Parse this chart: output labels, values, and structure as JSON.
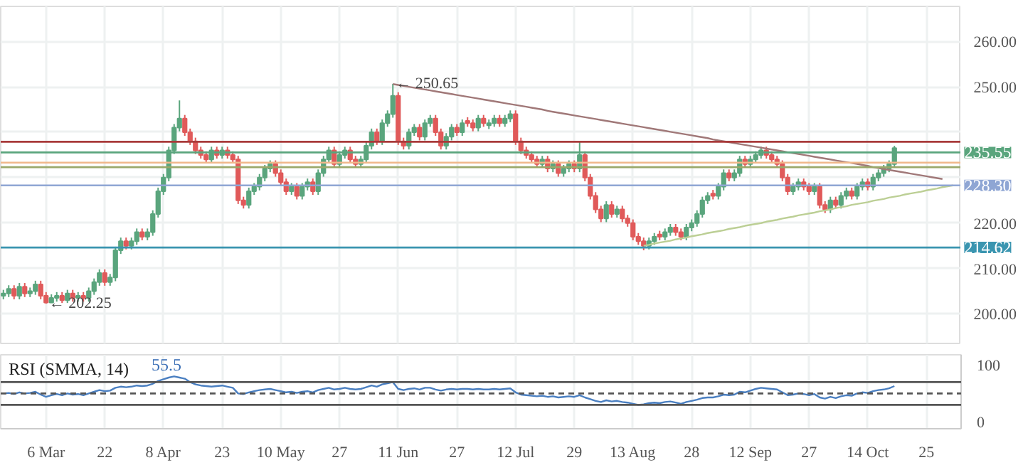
{
  "chart_data": [
    {
      "type": "candlestick",
      "categories": [
        null,
        null,
        null,
        null,
        null,
        null,
        null,
        null,
        null,
        null,
        null,
        null,
        null,
        null,
        null,
        null,
        null,
        null,
        null,
        null,
        null,
        null,
        null,
        null,
        null,
        null,
        null,
        null,
        null,
        null,
        null,
        null,
        null,
        null,
        null,
        null,
        null,
        null,
        null,
        null,
        null,
        null,
        null,
        null,
        null,
        null,
        null,
        null,
        null,
        null,
        null,
        null,
        null,
        null,
        null,
        null,
        null,
        null,
        null,
        null,
        null,
        null,
        null,
        null,
        null,
        null,
        null,
        null,
        null,
        null,
        null,
        null,
        null,
        null,
        null,
        null,
        null,
        null,
        null,
        null,
        null,
        null,
        null,
        null,
        null,
        null,
        null,
        null,
        null,
        null,
        null,
        null,
        null,
        null,
        null,
        null,
        null,
        null,
        null,
        null,
        null,
        null,
        null,
        null,
        null,
        null,
        null,
        null,
        null,
        null,
        null,
        null,
        null,
        null,
        null,
        null,
        null,
        null,
        null,
        null,
        null,
        null,
        null,
        null,
        null,
        null,
        null,
        null,
        null,
        null,
        null,
        null,
        null,
        null,
        null,
        null,
        null,
        null,
        null,
        null,
        null,
        null,
        null,
        null,
        null,
        null,
        null,
        null,
        null,
        null,
        null,
        null,
        null,
        null,
        null,
        null,
        null,
        null,
        null,
        null,
        null,
        null,
        null,
        null,
        null,
        null,
        null,
        null,
        null,
        null,
        null,
        null,
        null,
        null,
        null,
        null,
        null,
        null,
        null,
        null
      ],
      "ohlc": [
        [
          204,
          205.3,
          203.2,
          204.5
        ],
        [
          204.5,
          206.3,
          203.7,
          205.5
        ],
        [
          205.5,
          206.3,
          203.2,
          204
        ],
        [
          204,
          206.8,
          203.2,
          206
        ],
        [
          206,
          206.8,
          203.7,
          204.5
        ],
        [
          204.5,
          205.8,
          203.7,
          205
        ],
        [
          205,
          207.3,
          204.2,
          206.5
        ],
        [
          206.5,
          207.3,
          203.2,
          204
        ],
        [
          204,
          204.8,
          202.25,
          202.5
        ],
        [
          202.5,
          204.3,
          202.4,
          203.5
        ],
        [
          203.5,
          204.8,
          202.7,
          204
        ],
        [
          204,
          204.8,
          202.4,
          203
        ],
        [
          203,
          205.3,
          202.4,
          204.5
        ],
        [
          204.5,
          205.3,
          202.7,
          203.5
        ],
        [
          203.5,
          204.8,
          202.7,
          204
        ],
        [
          204,
          204.8,
          202.7,
          203.5
        ],
        [
          203.5,
          205.8,
          202.7,
          205
        ],
        [
          205,
          207.8,
          204.2,
          207
        ],
        [
          207,
          209.8,
          206.2,
          209
        ],
        [
          209,
          209.8,
          206.2,
          207
        ],
        [
          207,
          208.8,
          206.2,
          208
        ],
        [
          208,
          214.8,
          207.2,
          214
        ],
        [
          214,
          216.8,
          213.2,
          216
        ],
        [
          216,
          216.8,
          214.2,
          215
        ],
        [
          215,
          216.8,
          214.2,
          216
        ],
        [
          216,
          218.8,
          215.2,
          218
        ],
        [
          218,
          218.8,
          216.2,
          217
        ],
        [
          217,
          218.8,
          216.2,
          218
        ],
        [
          218,
          222.8,
          217.2,
          222
        ],
        [
          222,
          227.8,
          221.2,
          227
        ],
        [
          227,
          230.8,
          226.2,
          230
        ],
        [
          230,
          236.8,
          229.2,
          236
        ],
        [
          236,
          241.8,
          235.2,
          241
        ],
        [
          241,
          247,
          240.2,
          243
        ],
        [
          243,
          243.8,
          239.2,
          240
        ],
        [
          240,
          240.8,
          237.2,
          238
        ],
        [
          238,
          238.8,
          235.2,
          236
        ],
        [
          236,
          236.8,
          234.2,
          235
        ],
        [
          235,
          235.8,
          233.2,
          234
        ],
        [
          234,
          236.8,
          233.2,
          236
        ],
        [
          236,
          236.8,
          234.2,
          235
        ],
        [
          235,
          236.8,
          234.2,
          236
        ],
        [
          236,
          236.8,
          234.2,
          235
        ],
        [
          235,
          235.8,
          233.2,
          234
        ],
        [
          234,
          234.8,
          224.2,
          225
        ],
        [
          225,
          225.8,
          223.2,
          224
        ],
        [
          224,
          227.8,
          223.2,
          227
        ],
        [
          227,
          228.8,
          226.2,
          228
        ],
        [
          228,
          230.8,
          227.2,
          230
        ],
        [
          230,
          232.8,
          229.2,
          232
        ],
        [
          232,
          233.8,
          231.2,
          233
        ],
        [
          233,
          233.8,
          230.2,
          231
        ],
        [
          231,
          231.8,
          228.2,
          229
        ],
        [
          229,
          229.8,
          226.2,
          227
        ],
        [
          227,
          228.8,
          226.2,
          228
        ],
        [
          228,
          228.8,
          225.2,
          226
        ],
        [
          226,
          228.8,
          225.2,
          228
        ],
        [
          228,
          229.8,
          227.2,
          229
        ],
        [
          229,
          229.8,
          226.2,
          227
        ],
        [
          227,
          231.8,
          226.2,
          231
        ],
        [
          231,
          234.8,
          230.2,
          234
        ],
        [
          234,
          236.8,
          233.2,
          236
        ],
        [
          236,
          236.8,
          232.2,
          233
        ],
        [
          233,
          235.8,
          232.2,
          235
        ],
        [
          235,
          236.8,
          234.2,
          236
        ],
        [
          236,
          236.8,
          233.2,
          234
        ],
        [
          234,
          234.8,
          232.2,
          233
        ],
        [
          233,
          234.8,
          232.2,
          234
        ],
        [
          234,
          237.8,
          233.2,
          237
        ],
        [
          237,
          240.8,
          236.2,
          240
        ],
        [
          240,
          240.8,
          237.2,
          238
        ],
        [
          238,
          242.8,
          237.2,
          242
        ],
        [
          242,
          244.8,
          241.2,
          244
        ],
        [
          244,
          250.65,
          243.2,
          248
        ],
        [
          248,
          248.8,
          237.2,
          238
        ],
        [
          238,
          238.8,
          236.2,
          237
        ],
        [
          237,
          240.8,
          236.2,
          240
        ],
        [
          240,
          241.8,
          239.2,
          241
        ],
        [
          241,
          241.8,
          238.2,
          239
        ],
        [
          239,
          242.8,
          238.2,
          242
        ],
        [
          242,
          243.8,
          241.2,
          243
        ],
        [
          243,
          243.8,
          239.2,
          240
        ],
        [
          240,
          240.8,
          236.2,
          237
        ],
        [
          237,
          239.8,
          236.2,
          239
        ],
        [
          239,
          241.8,
          238.2,
          241
        ],
        [
          241,
          241.8,
          239.2,
          240
        ],
        [
          240,
          242.8,
          239.2,
          242
        ],
        [
          242.5,
          243.3,
          241.2,
          242
        ],
        [
          242,
          242.8,
          240.2,
          241
        ],
        [
          241,
          243.8,
          240.2,
          243
        ],
        [
          243,
          243.8,
          241.2,
          242
        ],
        [
          241.5,
          242.8,
          240.7,
          242
        ],
        [
          242,
          243.8,
          241.2,
          243
        ],
        [
          243,
          243.8,
          241.2,
          242
        ],
        [
          242,
          243.8,
          241.2,
          243
        ],
        [
          243,
          244.8,
          242.2,
          244
        ],
        [
          244,
          244.8,
          237.2,
          238
        ],
        [
          238,
          238.8,
          235.2,
          236
        ],
        [
          236,
          236.8,
          234.2,
          235
        ],
        [
          235,
          235.8,
          233.2,
          234
        ],
        [
          234,
          234.8,
          232.2,
          233
        ],
        [
          233,
          234.8,
          232.2,
          234
        ],
        [
          234,
          234.8,
          231.2,
          232
        ],
        [
          232,
          233.8,
          231.2,
          233
        ],
        [
          233,
          233.8,
          230.2,
          231
        ],
        [
          231,
          232.8,
          230.2,
          232
        ],
        [
          232,
          233.8,
          231.2,
          233
        ],
        [
          233,
          233.8,
          231.2,
          232
        ],
        [
          232,
          237.8,
          231.2,
          235
        ],
        [
          235,
          235.8,
          229.2,
          230
        ],
        [
          230,
          230.8,
          225.2,
          226
        ],
        [
          226,
          226.8,
          222.2,
          223
        ],
        [
          223,
          223.8,
          220.2,
          221
        ],
        [
          221,
          224.8,
          220.2,
          224
        ],
        [
          224,
          224.8,
          221.2,
          222
        ],
        [
          222,
          223.8,
          221.2,
          223
        ],
        [
          223,
          223.8,
          220.2,
          221
        ],
        [
          221,
          221.8,
          219.2,
          220
        ],
        [
          220,
          220.8,
          216.2,
          217
        ],
        [
          217,
          217.8,
          215.2,
          216
        ],
        [
          216,
          216.8,
          214,
          215
        ],
        [
          215,
          216.8,
          214.2,
          216
        ],
        [
          216,
          217.8,
          215.2,
          217
        ],
        [
          217.5,
          218.3,
          216.2,
          217
        ],
        [
          217,
          218.8,
          216.2,
          218
        ],
        [
          218,
          219.8,
          217.2,
          219
        ],
        [
          219,
          219.8,
          217.2,
          218
        ],
        [
          218,
          218.8,
          216.2,
          217
        ],
        [
          217,
          219.8,
          216.2,
          219
        ],
        [
          219,
          220.8,
          218.2,
          220
        ],
        [
          220,
          222.8,
          219.2,
          222
        ],
        [
          222,
          225.8,
          221.2,
          225
        ],
        [
          225,
          226.8,
          224.2,
          226
        ],
        [
          226.5,
          227.3,
          225.2,
          226
        ],
        [
          226,
          228.8,
          225.2,
          228
        ],
        [
          228,
          231.8,
          227.2,
          231
        ],
        [
          231,
          231.8,
          229.2,
          230
        ],
        [
          230,
          231.8,
          229.2,
          231
        ],
        [
          231,
          234.8,
          230.2,
          234
        ],
        [
          234,
          234.8,
          232.2,
          233
        ],
        [
          233,
          234.8,
          232.2,
          234
        ],
        [
          234,
          235.8,
          233.2,
          235
        ],
        [
          235,
          236.8,
          234.2,
          236
        ],
        [
          236,
          236.8,
          234.2,
          235
        ],
        [
          235,
          235.8,
          233.2,
          234
        ],
        [
          234,
          234.8,
          232.2,
          233
        ],
        [
          233,
          233.8,
          229.2,
          230
        ],
        [
          230,
          230.8,
          226.2,
          227
        ],
        [
          227,
          228.8,
          226.2,
          228
        ],
        [
          228,
          229.8,
          227.2,
          229
        ],
        [
          229,
          229.8,
          227.2,
          228
        ],
        [
          228,
          228.8,
          226.2,
          227
        ],
        [
          227,
          228.8,
          226.2,
          228
        ],
        [
          228,
          228.8,
          223.2,
          224
        ],
        [
          224,
          224.8,
          222.2,
          223
        ],
        [
          223,
          225.8,
          222.2,
          225
        ],
        [
          225,
          225.8,
          223.2,
          224
        ],
        [
          224,
          226.8,
          223.2,
          226
        ],
        [
          226,
          227.8,
          225.2,
          227
        ],
        [
          227,
          227.8,
          225.2,
          226
        ],
        [
          226,
          228.8,
          225.2,
          228
        ],
        [
          228,
          229.8,
          227.2,
          229
        ],
        [
          229,
          229.8,
          227.2,
          228
        ],
        [
          228,
          230.8,
          227.2,
          230
        ],
        [
          230,
          231.8,
          229.2,
          231
        ],
        [
          231,
          232.8,
          230.2,
          232
        ],
        [
          232,
          233.8,
          231.2,
          233
        ],
        [
          233,
          237,
          232.2,
          236.5
        ],
        null,
        null,
        null,
        null,
        null,
        null,
        null,
        null,
        null,
        null,
        null,
        null
      ],
      "series": [
        {
          "type": "line",
          "color": "#a07878",
          "values": [
            null,
            null,
            null,
            null,
            null,
            null,
            null,
            null,
            null,
            null,
            null,
            null,
            null,
            null,
            null,
            null,
            null,
            null,
            null,
            null,
            null,
            null,
            null,
            null,
            null,
            null,
            null,
            null,
            null,
            null,
            null,
            null,
            null,
            null,
            null,
            null,
            null,
            null,
            null,
            null,
            null,
            null,
            null,
            null,
            null,
            null,
            null,
            null,
            null,
            null,
            null,
            null,
            null,
            null,
            null,
            null,
            null,
            null,
            null,
            null,
            null,
            null,
            null,
            null,
            null,
            null,
            null,
            null,
            null,
            null,
            null,
            null,
            null,
            250.6,
            250.4,
            250.2,
            250.0,
            249.8,
            249.6,
            249.4,
            249.2,
            249.0,
            248.8,
            248.6,
            248.4,
            248.2,
            248.0,
            247.8,
            247.6,
            247.4,
            247.2,
            247.0,
            246.8,
            246.6,
            246.4,
            246.2,
            246.0,
            245.8,
            245.6,
            245.4,
            245.2,
            245.0,
            244.7,
            244.5,
            244.3,
            244.1,
            243.9,
            243.7,
            243.5,
            243.3,
            243.1,
            242.9,
            242.7,
            242.5,
            242.3,
            242.1,
            241.9,
            241.7,
            241.5,
            241.3,
            241.1,
            240.9,
            240.7,
            240.5,
            240.3,
            240.1,
            239.9,
            239.7,
            239.5,
            239.3,
            239.1,
            238.9,
            238.7,
            238.4,
            238.2,
            238.0,
            237.8,
            237.6,
            237.4,
            237.2,
            237.0,
            236.8,
            236.6,
            236.4,
            236.2,
            236.0,
            235.8,
            235.6,
            235.4,
            235.2,
            235.0,
            234.8,
            234.6,
            234.4,
            234.2,
            234.0,
            233.8,
            233.6,
            233.4,
            233.2,
            233.0,
            232.8,
            232.6,
            232.3,
            232.1,
            231.9,
            231.7,
            231.5,
            231.3,
            231.1,
            230.9,
            230.7,
            230.5,
            230.3,
            230.1,
            229.9,
            229.7,
            null,
            null,
            null
          ]
        },
        {
          "type": "line",
          "color": "#bccf95",
          "values": [
            null,
            null,
            null,
            null,
            null,
            null,
            null,
            null,
            null,
            null,
            null,
            null,
            null,
            null,
            null,
            null,
            null,
            null,
            null,
            null,
            null,
            null,
            null,
            null,
            null,
            null,
            null,
            null,
            null,
            null,
            null,
            null,
            null,
            null,
            null,
            null,
            null,
            null,
            null,
            null,
            null,
            null,
            null,
            null,
            null,
            null,
            null,
            null,
            null,
            null,
            null,
            null,
            null,
            null,
            null,
            null,
            null,
            null,
            null,
            null,
            null,
            null,
            null,
            null,
            null,
            null,
            null,
            null,
            null,
            null,
            null,
            null,
            null,
            null,
            null,
            null,
            null,
            null,
            null,
            null,
            null,
            null,
            null,
            null,
            null,
            null,
            null,
            null,
            null,
            null,
            null,
            null,
            null,
            null,
            null,
            null,
            null,
            null,
            null,
            null,
            null,
            null,
            null,
            null,
            null,
            null,
            null,
            null,
            null,
            null,
            null,
            null,
            null,
            null,
            null,
            null,
            null,
            null,
            null,
            null,
            215.0,
            215.2,
            215.5,
            215.7,
            215.9,
            216.1,
            216.4,
            216.6,
            216.8,
            217.1,
            217.3,
            217.5,
            217.8,
            218.0,
            218.2,
            218.4,
            218.7,
            218.9,
            219.1,
            219.4,
            219.6,
            219.8,
            220.0,
            220.3,
            220.5,
            220.7,
            221.0,
            221.2,
            221.4,
            221.7,
            221.9,
            222.1,
            222.3,
            222.6,
            222.8,
            223.0,
            223.3,
            223.5,
            223.7,
            224.0,
            224.2,
            224.4,
            224.6,
            224.9,
            225.1,
            225.3,
            225.6,
            225.8,
            226.0,
            226.3,
            226.5,
            226.7,
            226.9,
            227.2,
            227.4,
            227.6,
            227.9,
            228.1,
            228.3,
            null
          ]
        }
      ],
      "ylim": [
        193.5,
        267.7
      ],
      "yticks": [
        {
          "value": 200,
          "label": "200.00"
        },
        {
          "value": 210,
          "label": "210.00"
        },
        {
          "value": 220,
          "label": "220.00"
        },
        {
          "value": 230,
          "label": null
        },
        {
          "value": 240,
          "label": null
        },
        {
          "value": 250,
          "label": "250.00"
        },
        {
          "value": 260,
          "label": "260.00"
        }
      ],
      "ref_lines": [
        {
          "axis": "y",
          "value": 237.9,
          "label": null,
          "color": "#a83a3a"
        },
        {
          "axis": "y",
          "value": 235.55,
          "label": "235.55",
          "color": "#5aa57d"
        },
        {
          "axis": "y",
          "value": 233.3,
          "label": null,
          "color": "#f0b88a"
        },
        {
          "axis": "y",
          "value": 232.3,
          "label": null,
          "color": "#9aa86a"
        },
        {
          "axis": "y",
          "value": 228.3,
          "label": "228.30",
          "color": "#8fa6d4"
        },
        {
          "axis": "y",
          "value": 214.62,
          "label": "214.62",
          "color": "#3a95b0"
        }
      ],
      "annotations": [
        "← 250.65",
        "← 202.25"
      ],
      "grid": true,
      "tick_labels": "y"
    },
    {
      "type": "line",
      "title": "RSI (SMMA, 14)",
      "annotations": [
        "55.5"
      ],
      "categories": [
        null,
        null,
        null,
        null,
        null,
        null,
        null,
        null,
        "6 Mar",
        null,
        null,
        null,
        null,
        null,
        null,
        null,
        null,
        null,
        null,
        "22",
        null,
        null,
        null,
        null,
        null,
        null,
        null,
        null,
        null,
        null,
        "8 Apr",
        null,
        null,
        null,
        null,
        null,
        null,
        null,
        null,
        null,
        null,
        "23",
        null,
        null,
        null,
        null,
        null,
        null,
        null,
        null,
        null,
        null,
        "10 May",
        null,
        null,
        null,
        null,
        null,
        null,
        null,
        null,
        null,
        null,
        "27",
        null,
        null,
        null,
        null,
        null,
        null,
        null,
        null,
        null,
        null,
        "11 Jun",
        null,
        null,
        null,
        null,
        null,
        null,
        null,
        null,
        null,
        null,
        "27",
        null,
        null,
        null,
        null,
        null,
        null,
        null,
        null,
        null,
        null,
        "12 Jul",
        null,
        null,
        null,
        null,
        null,
        null,
        null,
        null,
        null,
        null,
        "29",
        null,
        null,
        null,
        null,
        null,
        null,
        null,
        null,
        null,
        null,
        "13 Aug",
        null,
        null,
        null,
        null,
        null,
        null,
        null,
        null,
        null,
        null,
        "28",
        null,
        null,
        null,
        null,
        null,
        null,
        null,
        null,
        null,
        null,
        "12 Sep",
        null,
        null,
        null,
        null,
        null,
        null,
        null,
        null,
        null,
        null,
        "27",
        null,
        null,
        null,
        null,
        null,
        null,
        null,
        null,
        null,
        null,
        "14 Oct",
        null,
        null,
        null,
        null,
        null,
        null,
        null,
        null,
        null,
        null,
        "25",
        null,
        null,
        null,
        null,
        null,
        null
      ],
      "series": [
        {
          "color": "#4a7fc1",
          "values": [
            50,
            51,
            49,
            52,
            50,
            51,
            53,
            48,
            44,
            47,
            49,
            47,
            50,
            48,
            49,
            47,
            50,
            53,
            56,
            54,
            55,
            60,
            62,
            61,
            62,
            64,
            63,
            64,
            67,
            72,
            75,
            78,
            80,
            78,
            76,
            70,
            66,
            64,
            63,
            62,
            63,
            64,
            62,
            60,
            50,
            49,
            52,
            54,
            56,
            57,
            58,
            56,
            54,
            52,
            53,
            51,
            53,
            54,
            52,
            56,
            58,
            60,
            57,
            58,
            60,
            58,
            57,
            58,
            61,
            64,
            62,
            66,
            68,
            70,
            58,
            56,
            58,
            59,
            57,
            60,
            60,
            57,
            55,
            57,
            58,
            57,
            58,
            58,
            57,
            58,
            57,
            57,
            58,
            57,
            58,
            59,
            52,
            48,
            47,
            46,
            45,
            46,
            44,
            45,
            43,
            44,
            45,
            44,
            47,
            43,
            40,
            37,
            35,
            38,
            36,
            37,
            35,
            34,
            32,
            30,
            31,
            33,
            34,
            33,
            35,
            36,
            34,
            32,
            35,
            37,
            39,
            42,
            43,
            43,
            45,
            48,
            47,
            48,
            53,
            52,
            55,
            58,
            60,
            59,
            58,
            57,
            52,
            47,
            48,
            50,
            49,
            47,
            49,
            43,
            41,
            44,
            42,
            45,
            47,
            46,
            50,
            52,
            51,
            54,
            56,
            57,
            59,
            63,
            null,
            null,
            null,
            null,
            null,
            null,
            null,
            null,
            null,
            null,
            null,
            null
          ]
        }
      ],
      "ylim": [
        -12,
        118
      ],
      "yticks": [
        0,
        100
      ],
      "ref_lines": [
        {
          "axis": "y",
          "value": 70,
          "color": "#555555",
          "line_style": "solid"
        },
        {
          "axis": "y",
          "value": 30,
          "color": "#555555",
          "line_style": "solid"
        },
        {
          "axis": "y",
          "value": 50,
          "color": "#555555",
          "line_style": "dashed"
        }
      ],
      "grid": "x"
    }
  ]
}
